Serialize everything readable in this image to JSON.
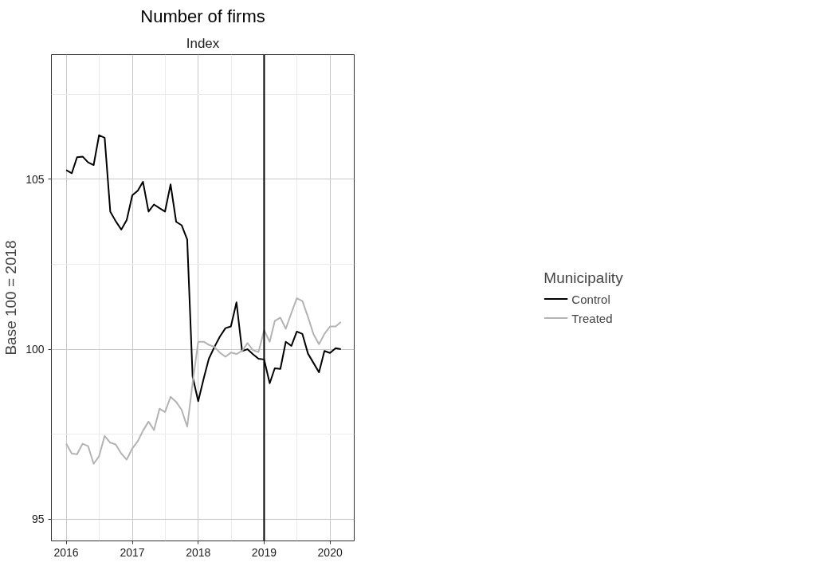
{
  "chart_data": {
    "type": "line",
    "title": "Number of firms",
    "subtitle": "Index",
    "ylabel": "Base 100 = 2018",
    "legend_title": "Municipality",
    "x": [
      "2016-01",
      "2016-02",
      "2016-03",
      "2016-04",
      "2016-05",
      "2016-06",
      "2016-07",
      "2016-08",
      "2016-09",
      "2016-10",
      "2016-11",
      "2016-12",
      "2017-01",
      "2017-02",
      "2017-03",
      "2017-04",
      "2017-05",
      "2017-06",
      "2017-07",
      "2017-08",
      "2017-09",
      "2017-10",
      "2017-11",
      "2017-12",
      "2018-01",
      "2018-02",
      "2018-03",
      "2018-04",
      "2018-05",
      "2018-06",
      "2018-07",
      "2018-08",
      "2018-09",
      "2018-10",
      "2018-11",
      "2018-12",
      "2019-01",
      "2019-02",
      "2019-03",
      "2019-04",
      "2019-05",
      "2019-06",
      "2019-07",
      "2019-08",
      "2019-09",
      "2019-10",
      "2019-11",
      "2019-12",
      "2020-01",
      "2020-02",
      "2020-03"
    ],
    "series": [
      {
        "name": "Control",
        "color": "#000000",
        "values": [
          105.27,
          105.18,
          105.65,
          105.67,
          105.5,
          105.42,
          106.3,
          106.22,
          104.05,
          103.77,
          103.52,
          103.8,
          104.53,
          104.67,
          104.93,
          104.05,
          104.26,
          104.15,
          104.05,
          104.85,
          103.75,
          103.65,
          103.23,
          99.2,
          98.47,
          99.15,
          99.72,
          100.07,
          100.37,
          100.62,
          100.67,
          101.38,
          99.95,
          100.0,
          99.85,
          99.72,
          99.7,
          99.0,
          99.44,
          99.42,
          100.22,
          100.1,
          100.52,
          100.45,
          99.87,
          99.6,
          99.32,
          99.95,
          99.89,
          100.03,
          100.0
        ]
      },
      {
        "name": "Treated",
        "color": "#b3b3b3",
        "values": [
          97.22,
          96.93,
          96.91,
          97.22,
          97.15,
          96.63,
          96.85,
          97.45,
          97.25,
          97.2,
          96.93,
          96.75,
          97.08,
          97.3,
          97.6,
          97.87,
          97.62,
          98.25,
          98.15,
          98.6,
          98.45,
          98.22,
          97.72,
          99.0,
          100.22,
          100.22,
          100.13,
          100.07,
          99.9,
          99.78,
          99.9,
          99.86,
          99.95,
          100.18,
          99.97,
          99.92,
          100.56,
          100.22,
          100.83,
          100.93,
          100.6,
          101.07,
          101.5,
          101.42,
          100.95,
          100.45,
          100.15,
          100.45,
          100.67,
          100.67,
          100.8
        ]
      }
    ],
    "xlim": [
      "2015-10-11",
      "2020-05-14"
    ],
    "xticks": [
      "2016",
      "2017",
      "2018",
      "2019",
      "2020"
    ],
    "ylim": [
      94.36,
      108.67
    ],
    "yticks": [
      95,
      100,
      105
    ],
    "ref_lines": [
      {
        "axis": "x",
        "value": "2019-01",
        "color": "#000000"
      }
    ],
    "grid": true,
    "legend": "right",
    "marker": "none",
    "line_style": "solid"
  }
}
